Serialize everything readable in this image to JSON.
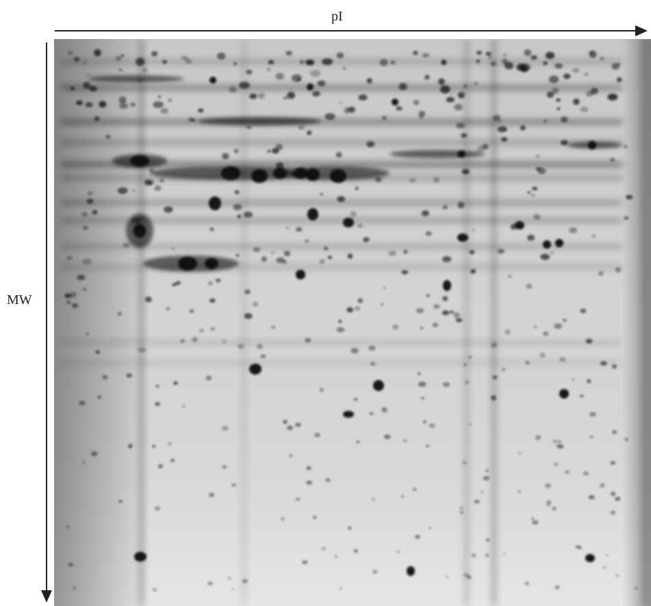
{
  "figure": {
    "x_axis_label": "pI",
    "y_axis_label": "MW"
  },
  "gel_image": {
    "icon": "2d-gel-electrophoresis-image",
    "background_color": "#dedede",
    "spot_color": "#0a0a0a"
  }
}
